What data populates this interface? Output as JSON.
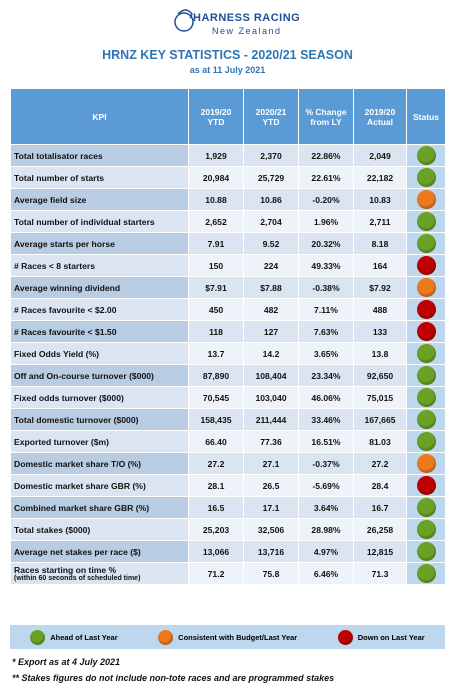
{
  "header": {
    "logo": {
      "name": "HARNESS RACING",
      "region": "New Zealand"
    },
    "title": "HRNZ KEY STATISTICS - 2020/21 SEASON",
    "subtitle": "as at 11 July 2021"
  },
  "table": {
    "columns": [
      "KPI",
      "2019/20 YTD",
      "2020/21 YTD",
      "% Change from LY",
      "2019/20 Actual",
      "Status"
    ],
    "rows": [
      {
        "kpi": "Total totalisator races",
        "cells": [
          "1,929",
          "2,370",
          "22.86%",
          "2,049"
        ],
        "status": "#6aa225"
      },
      {
        "kpi": "Total number of starts",
        "cells": [
          "20,984",
          "25,729",
          "22.61%",
          "22,182"
        ],
        "status": "#6aa225"
      },
      {
        "kpi": "Average field size",
        "cells": [
          "10.88",
          "10.86",
          "-0.20%",
          "10.83"
        ],
        "status": "#ec7a1c"
      },
      {
        "kpi": "Total number of individual starters",
        "cells": [
          "2,652",
          "2,704",
          "1.96%",
          "2,711"
        ],
        "status": "#6aa225"
      },
      {
        "kpi": "Average starts per horse",
        "cells": [
          "7.91",
          "9.52",
          "20.32%",
          "8.18"
        ],
        "status": "#6aa225"
      },
      {
        "kpi": "# Races < 8 starters",
        "cells": [
          "150",
          "224",
          "49.33%",
          "164"
        ],
        "status": "#c00000"
      },
      {
        "kpi": "Average winning dividend",
        "cells": [
          "$7.91",
          "$7.88",
          "-0.38%",
          "$7.92"
        ],
        "status": "#ec7a1c"
      },
      {
        "kpi": "# Races favourite < $2.00",
        "cells": [
          "450",
          "482",
          "7.11%",
          "488"
        ],
        "status": "#c00000"
      },
      {
        "kpi": "# Races favourite < $1.50",
        "cells": [
          "118",
          "127",
          "7.63%",
          "133"
        ],
        "status": "#c00000"
      },
      {
        "kpi": "Fixed Odds Yield (%)",
        "cells": [
          "13.7",
          "14.2",
          "3.65%",
          "13.8"
        ],
        "status": "#6aa225"
      },
      {
        "kpi": "Off and On-course turnover ($000)",
        "cells": [
          "87,890",
          "108,404",
          "23.34%",
          "92,650"
        ],
        "status": "#6aa225"
      },
      {
        "kpi": "Fixed odds turnover ($000)",
        "cells": [
          "70,545",
          "103,040",
          "46.06%",
          "75,015"
        ],
        "status": "#6aa225"
      },
      {
        "kpi": "Total domestic turnover ($000)",
        "cells": [
          "158,435",
          "211,444",
          "33.46%",
          "167,665"
        ],
        "status": "#6aa225"
      },
      {
        "kpi": "Exported turnover ($m)",
        "cells": [
          "66.40",
          "77.36",
          "16.51%",
          "81.03"
        ],
        "status": "#6aa225"
      },
      {
        "kpi": "Domestic market share T/O (%)",
        "cells": [
          "27.2",
          "27.1",
          "-0.37%",
          "27.2"
        ],
        "status": "#ec7a1c"
      },
      {
        "kpi": "Domestic market share GBR (%)",
        "cells": [
          "28.1",
          "26.5",
          "-5.69%",
          "28.4"
        ],
        "status": "#c00000"
      },
      {
        "kpi": "Combined market share GBR (%)",
        "cells": [
          "16.5",
          "17.1",
          "3.64%",
          "16.7"
        ],
        "status": "#6aa225"
      },
      {
        "kpi": "Total stakes ($000)",
        "cells": [
          "25,203",
          "32,506",
          "28.98%",
          "26,258"
        ],
        "status": "#6aa225"
      },
      {
        "kpi": "Average net stakes per race ($)",
        "cells": [
          "13,066",
          "13,716",
          "4.97%",
          "12,815"
        ],
        "status": "#6aa225"
      },
      {
        "kpi": "Races starting on time %",
        "note": "(within 60 seconds of scheduled time)",
        "cells": [
          "71.2",
          "75.8",
          "6.46%",
          "71.3"
        ],
        "status": "#6aa225"
      }
    ]
  },
  "legend": [
    {
      "label": "Ahead of Last Year",
      "color": "#6aa225"
    },
    {
      "label": "Consistent with Budget/Last Year",
      "color": "#ec7a1c"
    },
    {
      "label": "Down on Last Year",
      "color": "#c00000"
    }
  ],
  "footnotes": [
    "* Export as at 4 July 2021",
    "** Stakes figures do not include non-tote races and are programmed stakes"
  ]
}
